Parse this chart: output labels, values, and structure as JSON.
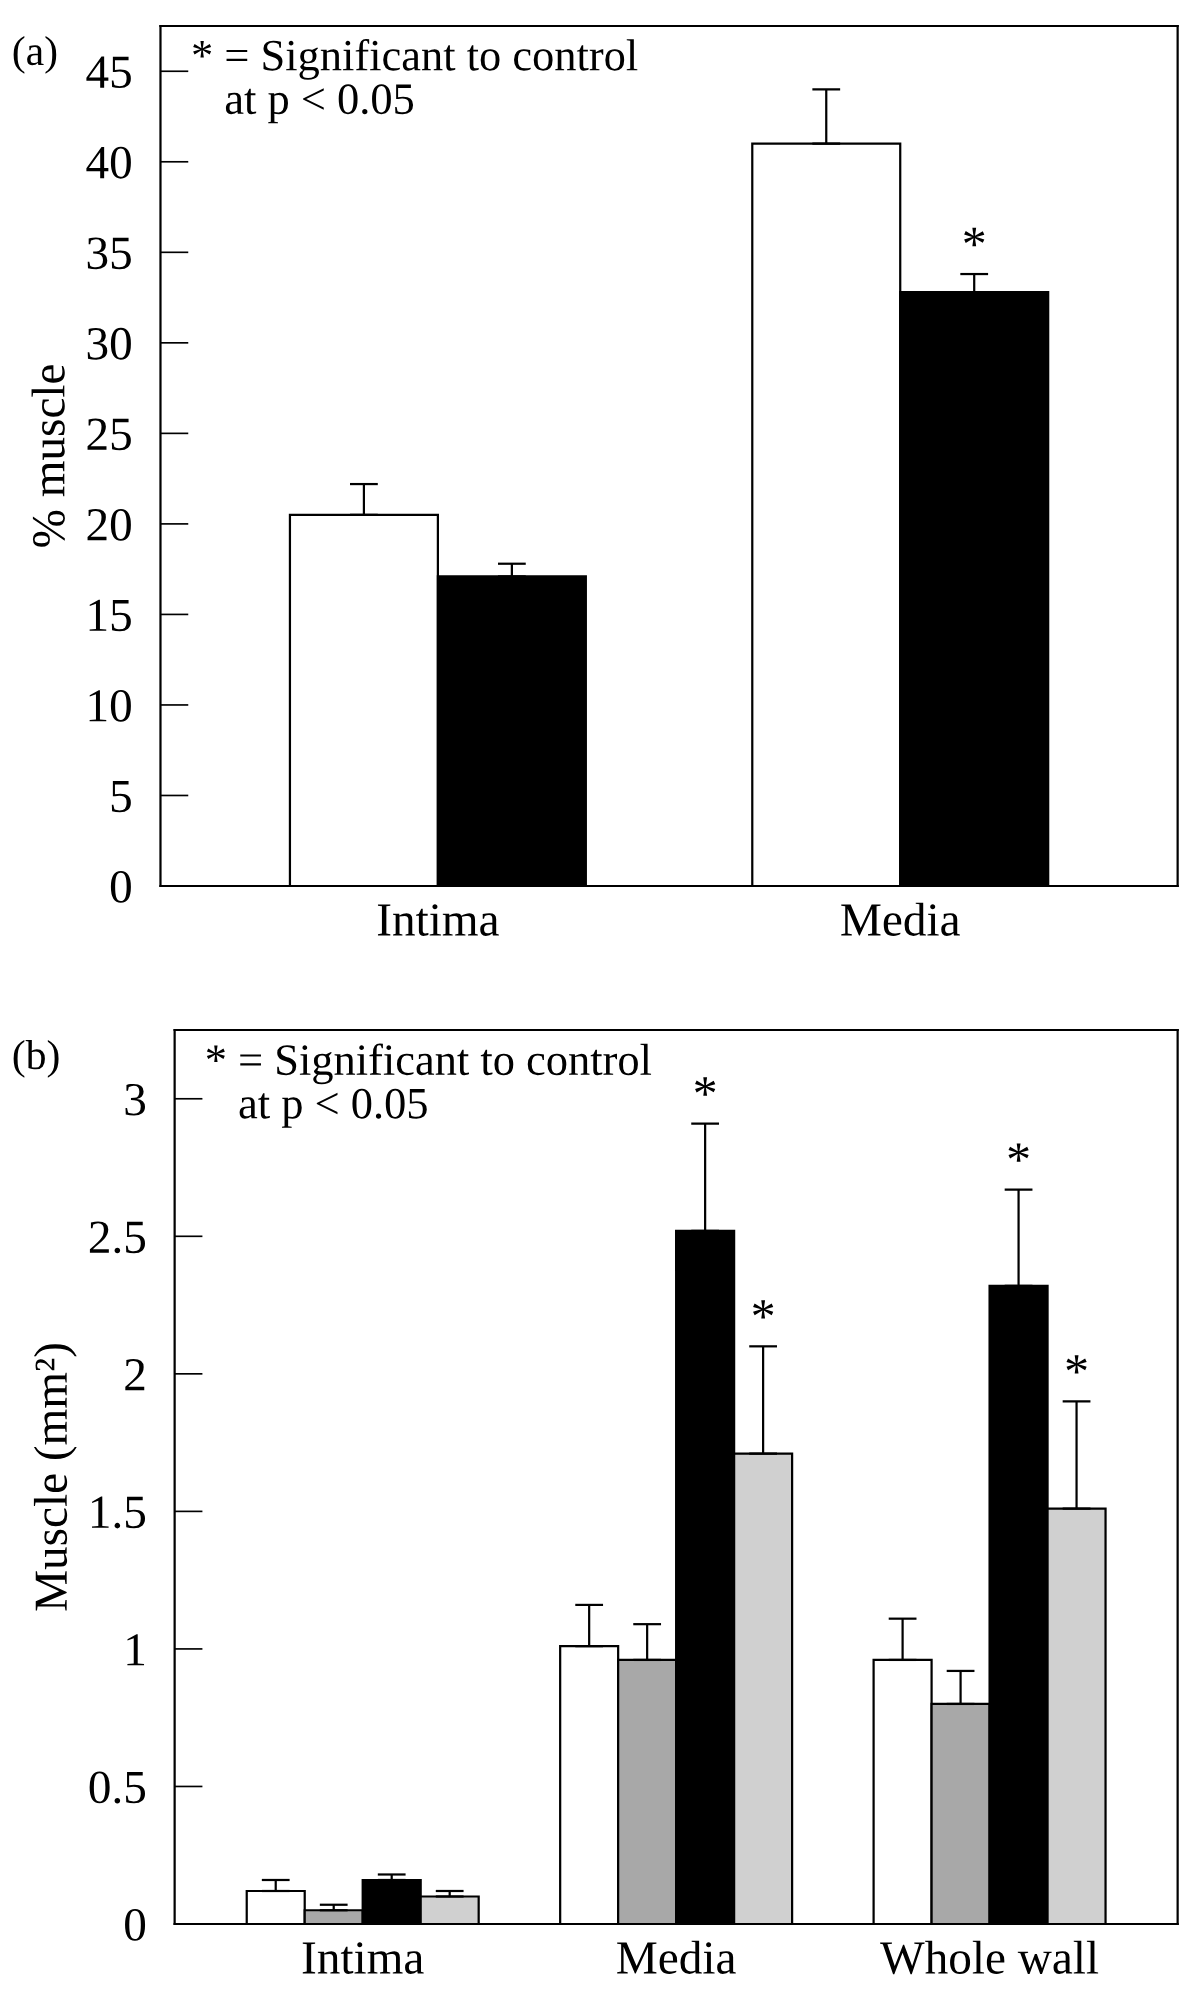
{
  "chart_data": [
    {
      "type": "bar",
      "title": "(a)",
      "ylabel": "% muscle",
      "categories": [
        "Intima",
        "Media"
      ],
      "series": [
        {
          "color": "#ffffff",
          "values": [
            20.5,
            41
          ],
          "errors": [
            [
              20.5,
              22.2
            ],
            [
              41,
              44
            ]
          ]
        },
        {
          "color": "#000000",
          "values": [
            17.1,
            32.8
          ],
          "errors": [
            [
              17.1,
              17.8
            ],
            [
              32.8,
              33.8
            ]
          ],
          "value_labels": [
            null,
            "*"
          ]
        }
      ],
      "ylim": [
        0,
        47.5
      ],
      "yticks": [
        0,
        5,
        10,
        15,
        20,
        25,
        30,
        35,
        40,
        45
      ],
      "grid": false,
      "legend": false,
      "annotations": [
        "* = Significant to control\n   at p < 0.05"
      ]
    },
    {
      "type": "bar",
      "title": "(b)",
      "ylabel": "Muscle (mm²)",
      "categories": [
        "Intima",
        "Media",
        "Whole wall"
      ],
      "series": [
        {
          "color": "#ffffff",
          "values": [
            0.12,
            1.01,
            0.96
          ],
          "errors": [
            [
              0.12,
              0.16
            ],
            [
              1.01,
              1.16
            ],
            [
              0.96,
              1.11
            ]
          ]
        },
        {
          "color": "#a8a8a8",
          "values": [
            0.05,
            0.96,
            0.8
          ],
          "errors": [
            [
              0.05,
              0.07
            ],
            [
              0.96,
              1.09
            ],
            [
              0.8,
              0.92
            ]
          ]
        },
        {
          "color": "#000000",
          "values": [
            0.16,
            2.52,
            2.32
          ],
          "errors": [
            [
              0.16,
              0.18
            ],
            [
              2.52,
              2.91
            ],
            [
              2.32,
              2.67
            ]
          ],
          "value_labels": [
            null,
            "*",
            "*"
          ]
        },
        {
          "color": "#d0d0d0",
          "values": [
            0.1,
            1.71,
            1.51
          ],
          "errors": [
            [
              0.1,
              0.12
            ],
            [
              1.71,
              2.1
            ],
            [
              1.51,
              1.9
            ]
          ],
          "value_labels": [
            null,
            "*",
            "*"
          ]
        }
      ],
      "ylim": [
        0,
        3.25
      ],
      "yticks": [
        0,
        0.5,
        1,
        1.5,
        2,
        2.5,
        3
      ],
      "grid": false,
      "legend": false,
      "annotations": [
        "* = Significant to control\n   at p < 0.05"
      ]
    }
  ]
}
